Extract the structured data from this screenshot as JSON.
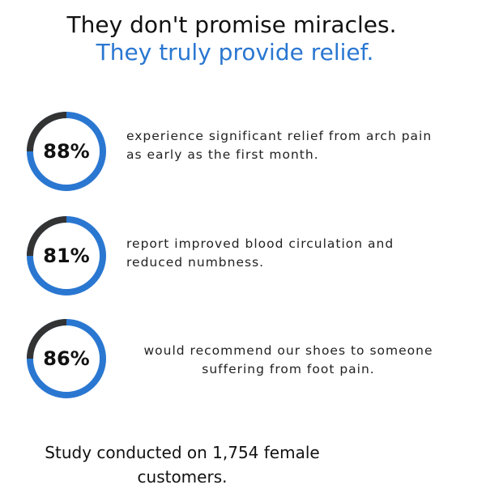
{
  "header": {
    "line1": "They don't promise miracles.",
    "line2": "They truly provide relief."
  },
  "colors": {
    "accent": "#2a77d1",
    "ring_dark": "#333333"
  },
  "stats": [
    {
      "value": "88%",
      "text": "experience significant relief from arch pain as early as the first month."
    },
    {
      "value": "81%",
      "text": "report improved blood circulation and reduced numbness."
    },
    {
      "value": "86%",
      "text": "would recommend our shoes to someone suffering from foot pain."
    }
  ],
  "footer": "Study conducted on 1,754 female customers."
}
